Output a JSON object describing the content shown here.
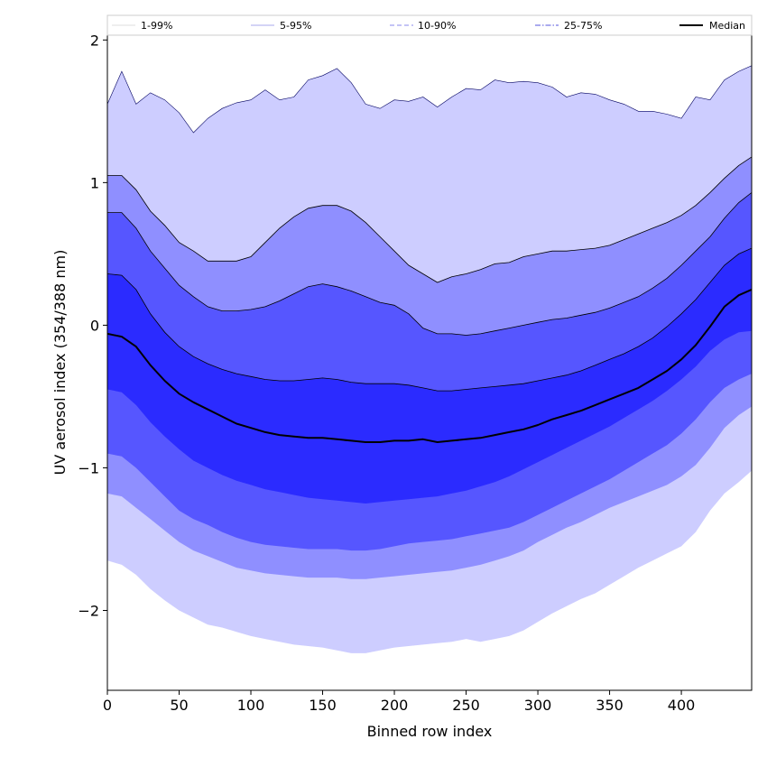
{
  "chart_data": {
    "type": "area",
    "title": "",
    "xlabel": "Binned row index",
    "ylabel": "UV aerosol index (354/388 nm)",
    "xlim": [
      0,
      449
    ],
    "ylim": [
      -2.56,
      2.04
    ],
    "xticks": [
      0,
      50,
      100,
      150,
      200,
      250,
      300,
      350,
      400
    ],
    "yticks": [
      -2,
      -1,
      0,
      1,
      2
    ],
    "ytick_labels": [
      "−2",
      "−1",
      "0",
      "1",
      "2"
    ],
    "grid": false,
    "legend_position": "top",
    "x": [
      0,
      10,
      20,
      30,
      40,
      50,
      60,
      70,
      80,
      90,
      100,
      110,
      120,
      130,
      140,
      150,
      160,
      170,
      180,
      190,
      200,
      210,
      220,
      230,
      240,
      250,
      260,
      270,
      280,
      290,
      300,
      310,
      320,
      330,
      340,
      350,
      360,
      370,
      380,
      390,
      400,
      410,
      420,
      430,
      440,
      449
    ],
    "bands": [
      {
        "name": "1-99%",
        "color": "#cdcdff",
        "line_style": "solid",
        "upper": [
          1.55,
          1.78,
          1.55,
          1.63,
          1.58,
          1.49,
          1.35,
          1.45,
          1.52,
          1.56,
          1.58,
          1.65,
          1.58,
          1.6,
          1.72,
          1.75,
          1.8,
          1.7,
          1.55,
          1.52,
          1.58,
          1.57,
          1.6,
          1.53,
          1.6,
          1.66,
          1.65,
          1.72,
          1.7,
          1.71,
          1.7,
          1.67,
          1.6,
          1.63,
          1.62,
          1.58,
          1.55,
          1.5,
          1.5,
          1.48,
          1.45,
          1.6,
          1.58,
          1.72,
          1.78,
          1.82
        ],
        "lower": [
          -1.65,
          -1.68,
          -1.75,
          -1.85,
          -1.93,
          -2.0,
          -2.05,
          -2.1,
          -2.12,
          -2.15,
          -2.18,
          -2.2,
          -2.22,
          -2.24,
          -2.25,
          -2.26,
          -2.28,
          -2.3,
          -2.3,
          -2.28,
          -2.26,
          -2.25,
          -2.24,
          -2.23,
          -2.22,
          -2.2,
          -2.22,
          -2.2,
          -2.18,
          -2.14,
          -2.08,
          -2.02,
          -1.97,
          -1.92,
          -1.88,
          -1.82,
          -1.76,
          -1.7,
          -1.65,
          -1.6,
          -1.55,
          -1.45,
          -1.3,
          -1.18,
          -1.1,
          -1.02
        ]
      },
      {
        "name": "5-95%",
        "color": "#8f8fff",
        "line_style": "solid",
        "upper": [
          1.05,
          1.05,
          0.95,
          0.8,
          0.7,
          0.58,
          0.52,
          0.45,
          0.45,
          0.45,
          0.48,
          0.58,
          0.68,
          0.76,
          0.82,
          0.84,
          0.84,
          0.8,
          0.72,
          0.62,
          0.52,
          0.42,
          0.36,
          0.3,
          0.34,
          0.36,
          0.39,
          0.43,
          0.44,
          0.48,
          0.5,
          0.52,
          0.52,
          0.53,
          0.54,
          0.56,
          0.6,
          0.64,
          0.68,
          0.72,
          0.77,
          0.84,
          0.93,
          1.03,
          1.12,
          1.18
        ],
        "lower": [
          -1.18,
          -1.2,
          -1.28,
          -1.36,
          -1.44,
          -1.52,
          -1.58,
          -1.62,
          -1.66,
          -1.7,
          -1.72,
          -1.74,
          -1.75,
          -1.76,
          -1.77,
          -1.77,
          -1.77,
          -1.78,
          -1.78,
          -1.77,
          -1.76,
          -1.75,
          -1.74,
          -1.73,
          -1.72,
          -1.7,
          -1.68,
          -1.65,
          -1.62,
          -1.58,
          -1.52,
          -1.47,
          -1.42,
          -1.38,
          -1.33,
          -1.28,
          -1.24,
          -1.2,
          -1.16,
          -1.12,
          -1.06,
          -0.98,
          -0.86,
          -0.72,
          -0.63,
          -0.57
        ]
      },
      {
        "name": "10-90%",
        "color": "#5656ff",
        "line_style": "dashed",
        "upper": [
          0.79,
          0.79,
          0.68,
          0.52,
          0.4,
          0.28,
          0.2,
          0.13,
          0.1,
          0.1,
          0.11,
          0.13,
          0.17,
          0.22,
          0.27,
          0.29,
          0.27,
          0.24,
          0.2,
          0.16,
          0.14,
          0.08,
          -0.02,
          -0.06,
          -0.06,
          -0.07,
          -0.06,
          -0.04,
          -0.02,
          0.0,
          0.02,
          0.04,
          0.05,
          0.07,
          0.09,
          0.12,
          0.16,
          0.2,
          0.26,
          0.33,
          0.42,
          0.52,
          0.62,
          0.75,
          0.86,
          0.93
        ],
        "lower": [
          -0.9,
          -0.92,
          -1.0,
          -1.1,
          -1.2,
          -1.3,
          -1.36,
          -1.4,
          -1.45,
          -1.49,
          -1.52,
          -1.54,
          -1.55,
          -1.56,
          -1.57,
          -1.57,
          -1.57,
          -1.58,
          -1.58,
          -1.57,
          -1.55,
          -1.53,
          -1.52,
          -1.51,
          -1.5,
          -1.48,
          -1.46,
          -1.44,
          -1.42,
          -1.38,
          -1.33,
          -1.28,
          -1.23,
          -1.18,
          -1.13,
          -1.08,
          -1.02,
          -0.96,
          -0.9,
          -0.84,
          -0.76,
          -0.66,
          -0.54,
          -0.44,
          -0.38,
          -0.34
        ]
      },
      {
        "name": "25-75%",
        "color": "#2b2bff",
        "line_style": "dashdot",
        "upper": [
          0.36,
          0.35,
          0.25,
          0.08,
          -0.05,
          -0.15,
          -0.22,
          -0.27,
          -0.31,
          -0.34,
          -0.36,
          -0.38,
          -0.39,
          -0.39,
          -0.38,
          -0.37,
          -0.38,
          -0.4,
          -0.41,
          -0.41,
          -0.41,
          -0.42,
          -0.44,
          -0.46,
          -0.46,
          -0.45,
          -0.44,
          -0.43,
          -0.42,
          -0.41,
          -0.39,
          -0.37,
          -0.35,
          -0.32,
          -0.28,
          -0.24,
          -0.2,
          -0.15,
          -0.09,
          -0.01,
          0.08,
          0.18,
          0.3,
          0.42,
          0.5,
          0.54
        ],
        "lower": [
          -0.45,
          -0.47,
          -0.56,
          -0.68,
          -0.78,
          -0.87,
          -0.95,
          -1.0,
          -1.05,
          -1.09,
          -1.12,
          -1.15,
          -1.17,
          -1.19,
          -1.21,
          -1.22,
          -1.23,
          -1.24,
          -1.25,
          -1.24,
          -1.23,
          -1.22,
          -1.21,
          -1.2,
          -1.18,
          -1.16,
          -1.13,
          -1.1,
          -1.06,
          -1.01,
          -0.96,
          -0.91,
          -0.86,
          -0.81,
          -0.76,
          -0.71,
          -0.65,
          -0.59,
          -0.53,
          -0.46,
          -0.38,
          -0.29,
          -0.18,
          -0.1,
          -0.05,
          -0.04
        ]
      }
    ],
    "median": {
      "name": "Median",
      "color": "#000000",
      "line_style": "solid",
      "values": [
        -0.06,
        -0.08,
        -0.15,
        -0.28,
        -0.39,
        -0.48,
        -0.54,
        -0.59,
        -0.64,
        -0.69,
        -0.72,
        -0.75,
        -0.77,
        -0.78,
        -0.79,
        -0.79,
        -0.8,
        -0.81,
        -0.82,
        -0.82,
        -0.81,
        -0.81,
        -0.8,
        -0.82,
        -0.81,
        -0.8,
        -0.79,
        -0.77,
        -0.75,
        -0.73,
        -0.7,
        -0.66,
        -0.63,
        -0.6,
        -0.56,
        -0.52,
        -0.48,
        -0.44,
        -0.38,
        -0.32,
        -0.24,
        -0.14,
        -0.01,
        0.13,
        0.21,
        0.25
      ]
    },
    "legend": [
      {
        "label": "1-99%",
        "color": "#dcdcdc",
        "line_style": "solid"
      },
      {
        "label": "5-95%",
        "color": "#aaaaee",
        "line_style": "solid"
      },
      {
        "label": "10-90%",
        "color": "#8a8aee",
        "line_style": "dashed"
      },
      {
        "label": "25-75%",
        "color": "#5555dd",
        "line_style": "dashdot"
      },
      {
        "label": "Median",
        "color": "#000000",
        "line_style": "solid"
      }
    ]
  }
}
